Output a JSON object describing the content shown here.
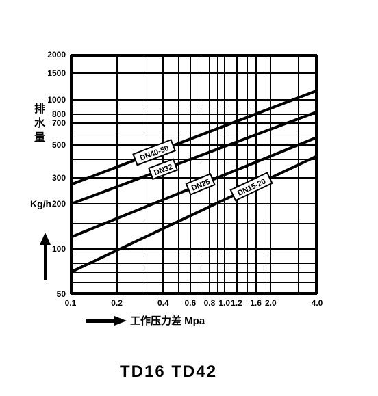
{
  "type": "line-log-log",
  "background_color": "#ffffff",
  "grid_color": "#000000",
  "line_color": "#000000",
  "x_axis": {
    "label": "工作压力差 Mpa",
    "ticks": [
      0.1,
      0.2,
      0.4,
      0.6,
      0.8,
      1.0,
      1.2,
      1.6,
      2.0,
      4.0
    ],
    "tick_labels": [
      "0.1",
      "0.2",
      "0.4",
      "0.6",
      "0.8",
      "1.0",
      "1.2",
      "1.6",
      "2.0",
      "4.0"
    ],
    "min": 0.1,
    "max": 4.0,
    "label_fontsize": 15
  },
  "y_axis": {
    "label_vertical": "排水量",
    "unit": "Kg/h",
    "ticks": [
      50,
      100,
      200,
      300,
      500,
      700,
      800,
      1000,
      1500,
      2000
    ],
    "tick_labels": [
      "50",
      "100",
      "200",
      "300",
      "500",
      "700",
      "800",
      "1000",
      "1500",
      "2000"
    ],
    "min": 50,
    "max": 2000,
    "label_fontsize": 16
  },
  "series": [
    {
      "name": "DN40-50",
      "points": [
        [
          0.1,
          270
        ],
        [
          4.0,
          1150
        ]
      ],
      "label_at_x": 0.35
    },
    {
      "name": "DN32",
      "points": [
        [
          0.1,
          200
        ],
        [
          4.0,
          830
        ]
      ],
      "label_at_x": 0.4
    },
    {
      "name": "DN25",
      "points": [
        [
          0.1,
          120
        ],
        [
          4.0,
          560
        ]
      ],
      "label_at_x": 0.7
    },
    {
      "name": "DN15-20",
      "points": [
        [
          0.1,
          70
        ],
        [
          4.0,
          420
        ]
      ],
      "label_at_x": 1.5
    }
  ],
  "bottom_title": "TD16  TD42",
  "line_width": 4,
  "tick_fontsize": 12
}
